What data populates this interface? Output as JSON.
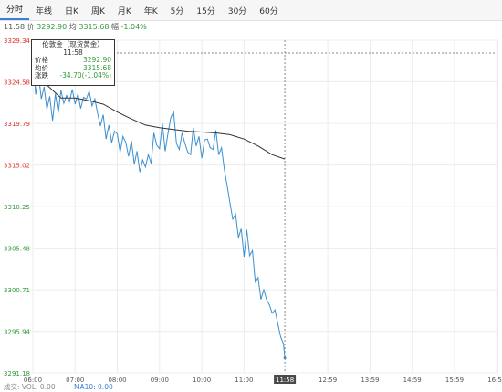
{
  "tabs": [
    {
      "label": "分时",
      "active": true
    },
    {
      "label": "年线",
      "active": false
    },
    {
      "label": "日K",
      "active": false
    },
    {
      "label": "周K",
      "active": false
    },
    {
      "label": "月K",
      "active": false
    },
    {
      "label": "年K",
      "active": false
    },
    {
      "label": "5分",
      "active": false
    },
    {
      "label": "15分",
      "active": false
    },
    {
      "label": "30分",
      "active": false
    },
    {
      "label": "60分",
      "active": false
    }
  ],
  "info": {
    "time": "11:58",
    "price_label": "价",
    "price": "3292.90",
    "avg_label": "均",
    "avg": "3315.68",
    "chg_label": "幅",
    "chg": "-1.04%"
  },
  "tooltip": {
    "title": "伦敦金（现货黄金）",
    "time": "11:58",
    "rows": [
      {
        "label": "价格",
        "value": "3292.90"
      },
      {
        "label": "均价",
        "value": "3315.68"
      },
      {
        "label": "涨跌",
        "value": "-34.70(-1.04%)"
      }
    ]
  },
  "current_time_label": "11:58",
  "volume": {
    "label": "成交: VOL: 0.00",
    "ma_label": "MA10: 0.00"
  },
  "colors": {
    "up": "#e0312a",
    "down": "#2e9b3d",
    "price_line": "#3a8fd0",
    "avg_line": "#333333",
    "crosshair": "#888888"
  },
  "chart_data": {
    "type": "line",
    "title": "伦敦金（现货黄金）",
    "ylim": [
      3291.18,
      3329.34
    ],
    "y_ticks": [
      "3329.34",
      "3324.58",
      "3319.79",
      "3315.02",
      "3310.25",
      "3305.48",
      "3300.71",
      "3295.94",
      "3291.18"
    ],
    "x_ticks": [
      "06:00",
      "07:00",
      "08:00",
      "09:00",
      "10:00",
      "11:00",
      "11:58",
      "12:59",
      "13:59",
      "14:59",
      "15:59",
      "16:59"
    ],
    "x_range": [
      "06:00",
      "17:00"
    ],
    "series": [
      {
        "name": "价格",
        "x": [
          "06:00",
          "06:04",
          "06:08",
          "06:12",
          "06:16",
          "06:20",
          "06:24",
          "06:28",
          "06:32",
          "06:36",
          "06:40",
          "06:44",
          "06:48",
          "06:52",
          "06:56",
          "07:00",
          "07:04",
          "07:08",
          "07:12",
          "07:16",
          "07:20",
          "07:24",
          "07:28",
          "07:32",
          "07:36",
          "07:40",
          "07:44",
          "07:48",
          "07:52",
          "07:56",
          "08:00",
          "08:04",
          "08:08",
          "08:12",
          "08:16",
          "08:20",
          "08:24",
          "08:28",
          "08:32",
          "08:36",
          "08:40",
          "08:44",
          "08:48",
          "08:52",
          "08:56",
          "09:00",
          "09:04",
          "09:08",
          "09:12",
          "09:16",
          "09:20",
          "09:24",
          "09:28",
          "09:32",
          "09:36",
          "09:40",
          "09:44",
          "09:48",
          "09:52",
          "09:56",
          "10:00",
          "10:04",
          "10:08",
          "10:12",
          "10:16",
          "10:20",
          "10:24",
          "10:28",
          "10:32",
          "10:36",
          "10:40",
          "10:44",
          "10:48",
          "10:52",
          "10:56",
          "11:00",
          "11:04",
          "11:08",
          "11:12",
          "11:16",
          "11:20",
          "11:24",
          "11:28",
          "11:32",
          "11:36",
          "11:40",
          "11:44",
          "11:48",
          "11:52",
          "11:56",
          "11:58"
        ],
        "values": [
          3327.9,
          3323.1,
          3325.4,
          3322.6,
          3324.0,
          3321.4,
          3322.9,
          3320.1,
          3323.2,
          3321.0,
          3323.6,
          3322.1,
          3323.0,
          3322.3,
          3323.7,
          3322.0,
          3323.2,
          3321.5,
          3322.8,
          3322.6,
          3323.5,
          3321.8,
          3322.6,
          3320.9,
          3319.5,
          3320.8,
          3318.0,
          3319.6,
          3317.6,
          3318.9,
          3318.6,
          3316.5,
          3318.3,
          3317.6,
          3316.0,
          3317.8,
          3315.1,
          3316.6,
          3314.2,
          3315.6,
          3314.8,
          3316.2,
          3315.2,
          3318.7,
          3317.3,
          3316.9,
          3319.8,
          3316.6,
          3318.7,
          3320.5,
          3321.1,
          3317.5,
          3316.8,
          3318.7,
          3317.5,
          3316.5,
          3316.2,
          3319.3,
          3317.2,
          3318.3,
          3315.8,
          3317.9,
          3318.0,
          3317.0,
          3316.8,
          3319.0,
          3316.2,
          3317.0,
          3314.5,
          3312.6,
          3310.7,
          3308.8,
          3309.4,
          3306.7,
          3307.7,
          3304.5,
          3307.6,
          3304.6,
          3305.2,
          3301.6,
          3302.1,
          3299.6,
          3300.7,
          3299.6,
          3299.0,
          3298.0,
          3298.4,
          3296.8,
          3295.3,
          3294.5,
          3292.9
        ]
      },
      {
        "name": "均价",
        "x": [
          "06:00",
          "06:20",
          "06:40",
          "07:00",
          "07:20",
          "07:40",
          "08:00",
          "08:20",
          "08:40",
          "09:00",
          "09:20",
          "09:40",
          "10:00",
          "10:20",
          "10:40",
          "11:00",
          "11:20",
          "11:40",
          "11:58"
        ],
        "values": [
          3325.6,
          3324.2,
          3322.7,
          3322.7,
          3322.4,
          3322.0,
          3321.1,
          3320.3,
          3319.6,
          3319.3,
          3319.1,
          3318.9,
          3318.8,
          3318.7,
          3318.5,
          3318.0,
          3317.2,
          3316.2,
          3315.7
        ]
      }
    ]
  }
}
